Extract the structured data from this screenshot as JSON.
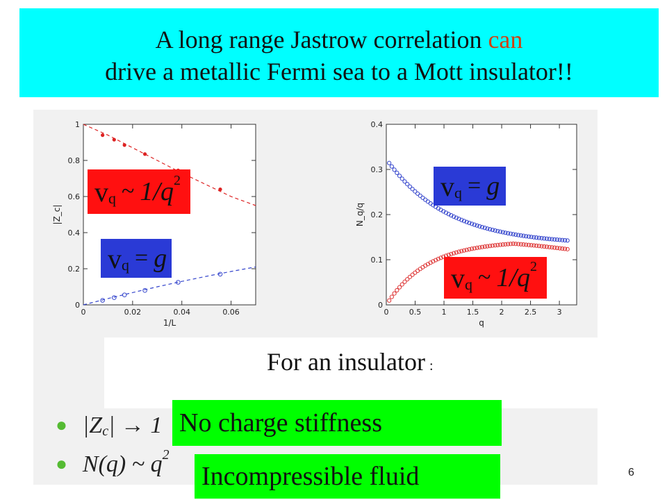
{
  "title": {
    "line1_before": "A  long range Jastrow correlation  ",
    "line1_accent": "can",
    "line2": "drive a metallic Fermi sea to a Mott insulator!!"
  },
  "labels": {
    "red_math": {
      "v": "v",
      "sub": "q",
      "op": "~",
      "rhs": "1/q",
      "sup": "2"
    },
    "blue_math": {
      "v": "v",
      "sub": "q",
      "op": "=",
      "rhs": "g"
    }
  },
  "insulator": {
    "text": "For an insulator",
    "colon": ":"
  },
  "bullets": [
    {
      "expr": "|Z",
      "sub": "c",
      "rest": "| → 1"
    },
    {
      "expr": "N(q) ~ q",
      "sup": "2"
    }
  ],
  "green_labels": [
    "No charge stiffness",
    "Incompressible fluid"
  ],
  "page_number": "6",
  "colors": {
    "title_bg": "#00ffff",
    "accent": "#d04010",
    "red_box": "#ff1010",
    "blue_box": "#2a3ad6",
    "green_box": "#00ff00"
  },
  "chart_data": [
    {
      "type": "scatter",
      "xlabel": "1/L",
      "ylabel": "|Z_c|",
      "xlim": [
        0,
        0.07
      ],
      "ylim": [
        0,
        1
      ],
      "x_ticks": [
        "0",
        "0.02",
        "0.04",
        "0.06"
      ],
      "y_ticks": [
        "0",
        "0.2",
        "0.4",
        "0.6",
        "0.8",
        "1"
      ],
      "series": [
        {
          "color": "#dd2222",
          "fit": true,
          "points": [
            [
              0.0078,
              0.94
            ],
            [
              0.0125,
              0.915
            ],
            [
              0.0167,
              0.885
            ],
            [
              0.025,
              0.835
            ],
            [
              0.0385,
              0.745
            ],
            [
              0.0556,
              0.64
            ]
          ],
          "fit_curve": [
            [
              0,
              1.0
            ],
            [
              0.01,
              0.94
            ],
            [
              0.02,
              0.87
            ],
            [
              0.03,
              0.8
            ],
            [
              0.04,
              0.73
            ],
            [
              0.05,
              0.665
            ],
            [
              0.06,
              0.6
            ],
            [
              0.07,
              0.55
            ]
          ]
        },
        {
          "color": "#3344cc",
          "fit": true,
          "points": [
            [
              0.0078,
              0.025
            ],
            [
              0.0125,
              0.04
            ],
            [
              0.0167,
              0.055
            ],
            [
              0.025,
              0.08
            ],
            [
              0.0385,
              0.125
            ],
            [
              0.0556,
              0.17
            ]
          ],
          "fit_curve": [
            [
              0,
              0.0
            ],
            [
              0.01,
              0.035
            ],
            [
              0.02,
              0.068
            ],
            [
              0.03,
              0.1
            ],
            [
              0.04,
              0.13
            ],
            [
              0.05,
              0.158
            ],
            [
              0.06,
              0.185
            ],
            [
              0.07,
              0.21
            ]
          ]
        }
      ]
    },
    {
      "type": "scatter",
      "xlabel": "q",
      "ylabel": "N_q/q",
      "xlim": [
        0,
        3.3
      ],
      "ylim": [
        0,
        0.4
      ],
      "x_ticks": [
        "0",
        "0.5",
        "1",
        "1.5",
        "2",
        "2.5",
        "3"
      ],
      "y_ticks": [
        "0",
        "0.1",
        "0.2",
        "0.3",
        "0.4"
      ],
      "series": [
        {
          "color": "#3344cc",
          "fn": "blue",
          "q_range": [
            0.05,
            3.14
          ],
          "n": 70
        },
        {
          "color": "#dd3333",
          "fn": "red",
          "q_range": [
            0.05,
            3.14
          ],
          "n": 70
        }
      ]
    }
  ]
}
